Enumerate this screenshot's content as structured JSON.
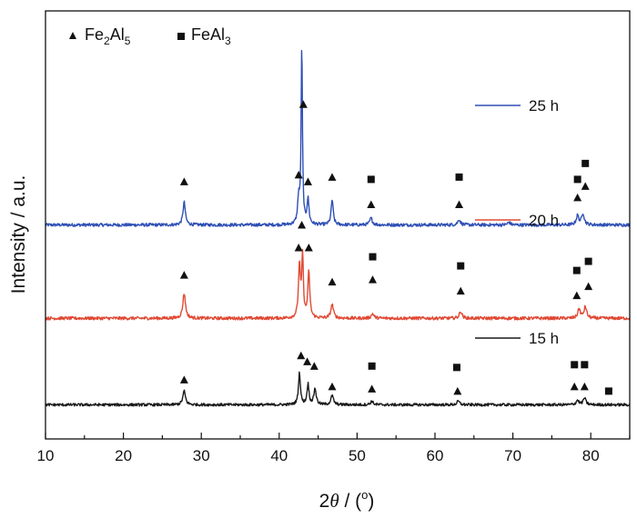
{
  "chart_data": {
    "type": "line",
    "title": "",
    "xlabel": {
      "prefix": "2",
      "theta": "θ",
      "suffix": " / (",
      "deg": "o",
      "close": ")"
    },
    "ylabel": "Intensity / a.u.",
    "xlim": [
      10,
      85
    ],
    "xticks": [
      10,
      20,
      30,
      40,
      50,
      60,
      70,
      80
    ],
    "yticks_shown": false,
    "phase_legend": [
      {
        "marker": "triangle",
        "name_main": "Fe",
        "sub1": "2",
        "mid": "Al",
        "sub2": "5"
      },
      {
        "marker": "square",
        "name_main": "FeAl",
        "sub1": "3"
      }
    ],
    "series": [
      {
        "name": "25 h",
        "color": "#2e4fb5",
        "baseline": 1.7,
        "noise": 0.035,
        "peaks": [
          {
            "x": 27.8,
            "h": 0.5,
            "w": 0.18
          },
          {
            "x": 42.5,
            "h": 0.55,
            "w": 0.15
          },
          {
            "x": 42.9,
            "h": 3.9,
            "w": 0.1
          },
          {
            "x": 43.7,
            "h": 0.55,
            "w": 0.15
          },
          {
            "x": 46.8,
            "h": 0.55,
            "w": 0.16
          },
          {
            "x": 51.8,
            "h": 0.15,
            "w": 0.2
          },
          {
            "x": 63.1,
            "h": 0.12,
            "w": 0.2
          },
          {
            "x": 69.5,
            "h": 0.06,
            "w": 0.2
          },
          {
            "x": 78.3,
            "h": 0.2,
            "w": 0.2
          },
          {
            "x": 79.0,
            "h": 0.25,
            "w": 0.2
          }
        ],
        "markers": [
          {
            "x": 27.8,
            "y": 0.95,
            "type": "triangle"
          },
          {
            "x": 42.5,
            "y": 1.1,
            "type": "triangle"
          },
          {
            "x": 43.1,
            "y": 2.65,
            "type": "triangle"
          },
          {
            "x": 42.9,
            "y": 5.85,
            "type": "triangle"
          },
          {
            "x": 43.7,
            "y": 0.95,
            "type": "triangle"
          },
          {
            "x": 46.8,
            "y": 1.05,
            "type": "triangle"
          },
          {
            "x": 51.8,
            "y": 0.45,
            "type": "triangle"
          },
          {
            "x": 51.8,
            "y": 1.0,
            "type": "square"
          },
          {
            "x": 63.1,
            "y": 0.45,
            "type": "triangle"
          },
          {
            "x": 63.1,
            "y": 1.05,
            "type": "square"
          },
          {
            "x": 78.3,
            "y": 0.6,
            "type": "triangle"
          },
          {
            "x": 78.3,
            "y": 1.0,
            "type": "square"
          },
          {
            "x": 79.3,
            "y": 0.85,
            "type": "triangle"
          },
          {
            "x": 79.3,
            "y": 1.35,
            "type": "square"
          }
        ]
      },
      {
        "name": "20 h",
        "color": "#e04a35",
        "baseline": -0.35,
        "noise": 0.035,
        "peaks": [
          {
            "x": 27.8,
            "h": 0.55,
            "w": 0.2
          },
          {
            "x": 42.6,
            "h": 1.15,
            "w": 0.15
          },
          {
            "x": 43.0,
            "h": 1.35,
            "w": 0.12
          },
          {
            "x": 43.8,
            "h": 1.0,
            "w": 0.15
          },
          {
            "x": 46.8,
            "h": 0.3,
            "w": 0.2
          },
          {
            "x": 52.0,
            "h": 0.1,
            "w": 0.2
          },
          {
            "x": 63.3,
            "h": 0.15,
            "w": 0.2
          },
          {
            "x": 78.5,
            "h": 0.2,
            "w": 0.2
          },
          {
            "x": 79.3,
            "h": 0.25,
            "w": 0.2
          }
        ],
        "markers": [
          {
            "x": 27.8,
            "y": 0.95,
            "type": "triangle"
          },
          {
            "x": 42.5,
            "y": 1.55,
            "type": "triangle"
          },
          {
            "x": 42.9,
            "y": 2.05,
            "type": "triangle"
          },
          {
            "x": 43.8,
            "y": 1.55,
            "type": "triangle"
          },
          {
            "x": 46.8,
            "y": 0.8,
            "type": "triangle"
          },
          {
            "x": 52.0,
            "y": 0.85,
            "type": "triangle"
          },
          {
            "x": 52.0,
            "y": 1.35,
            "type": "square"
          },
          {
            "x": 63.3,
            "y": 0.6,
            "type": "triangle"
          },
          {
            "x": 63.3,
            "y": 1.15,
            "type": "square"
          },
          {
            "x": 78.2,
            "y": 0.5,
            "type": "triangle"
          },
          {
            "x": 78.2,
            "y": 1.05,
            "type": "square"
          },
          {
            "x": 79.7,
            "y": 0.7,
            "type": "triangle"
          },
          {
            "x": 79.7,
            "y": 1.25,
            "type": "square"
          }
        ]
      },
      {
        "name": "15 h",
        "color": "#1a1a1a",
        "baseline": -2.25,
        "noise": 0.03,
        "peaks": [
          {
            "x": 27.8,
            "h": 0.3,
            "w": 0.2
          },
          {
            "x": 42.6,
            "h": 0.7,
            "w": 0.15
          },
          {
            "x": 43.7,
            "h": 0.45,
            "w": 0.15
          },
          {
            "x": 44.6,
            "h": 0.35,
            "w": 0.18
          },
          {
            "x": 46.8,
            "h": 0.2,
            "w": 0.2
          },
          {
            "x": 51.9,
            "h": 0.08,
            "w": 0.2
          },
          {
            "x": 63.0,
            "h": 0.08,
            "w": 0.2
          },
          {
            "x": 78.3,
            "h": 0.1,
            "w": 0.2
          },
          {
            "x": 79.2,
            "h": 0.15,
            "w": 0.2
          }
        ],
        "markers": [
          {
            "x": 27.8,
            "y": 0.55,
            "type": "triangle"
          },
          {
            "x": 42.8,
            "y": 1.08,
            "type": "triangle"
          },
          {
            "x": 43.6,
            "y": 0.95,
            "type": "triangle"
          },
          {
            "x": 44.5,
            "y": 0.85,
            "type": "triangle"
          },
          {
            "x": 46.8,
            "y": 0.4,
            "type": "triangle"
          },
          {
            "x": 51.9,
            "y": 0.35,
            "type": "triangle"
          },
          {
            "x": 51.9,
            "y": 0.85,
            "type": "square"
          },
          {
            "x": 62.9,
            "y": 0.3,
            "type": "triangle"
          },
          {
            "x": 62.8,
            "y": 0.82,
            "type": "square"
          },
          {
            "x": 77.9,
            "y": 0.4,
            "type": "triangle"
          },
          {
            "x": 77.9,
            "y": 0.88,
            "type": "square"
          },
          {
            "x": 79.2,
            "y": 0.4,
            "type": "triangle"
          },
          {
            "x": 79.2,
            "y": 0.88,
            "type": "square"
          },
          {
            "x": 82.3,
            "y": 0.3,
            "type": "square"
          }
        ]
      }
    ],
    "ylim": [
      -3.0,
      6.4
    ]
  }
}
